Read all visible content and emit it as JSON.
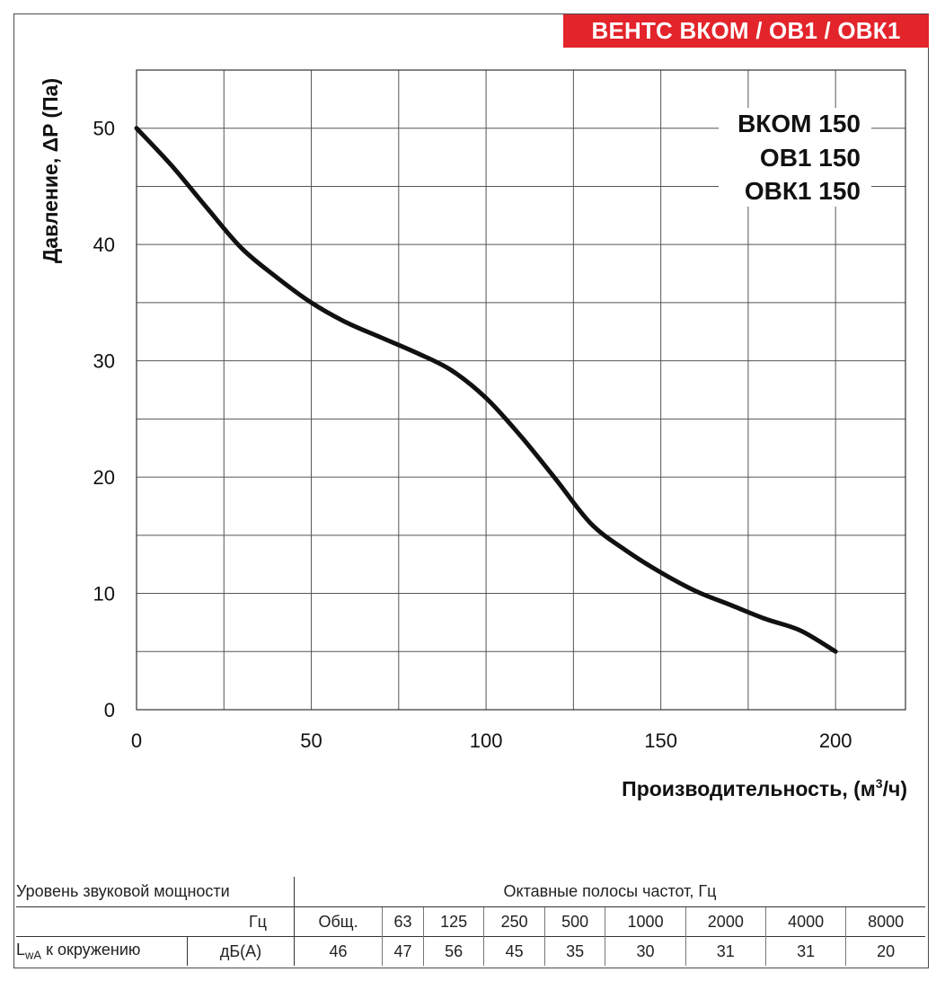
{
  "header": {
    "title": "ВЕНТС ВКОМ / ОВ1 / ОВК1"
  },
  "chart_data": {
    "type": "line",
    "title": "",
    "model_labels": [
      "ВКОМ 150",
      "ОВ1 150",
      "ОВК1 150"
    ],
    "xlabel": "Производительность, (м³/ч)",
    "xlabel_main": "Производительность, (м",
    "xlabel_sup": "3",
    "xlabel_tail": "/ч)",
    "ylabel": "Давление, ΔP (Па)",
    "xlim": [
      0,
      220
    ],
    "ylim": [
      0,
      55
    ],
    "x_ticks": [
      0,
      50,
      100,
      150,
      200
    ],
    "y_ticks": [
      0,
      10,
      20,
      30,
      40,
      50
    ],
    "grid": true,
    "series": [
      {
        "name": "ВКОМ 150 / ОВ1 150 / ОВК1 150",
        "x": [
          0,
          10,
          20,
          30,
          40,
          50,
          60,
          70,
          80,
          90,
          100,
          110,
          120,
          130,
          140,
          150,
          160,
          170,
          180,
          190,
          200
        ],
        "y": [
          50,
          46.8,
          43.2,
          39.7,
          37.2,
          35.0,
          33.3,
          32.0,
          30.7,
          29.2,
          26.8,
          23.5,
          19.8,
          16.0,
          13.7,
          11.8,
          10.2,
          9.0,
          7.8,
          6.8,
          5.0
        ]
      }
    ],
    "color": "#111111"
  },
  "sound": {
    "title": "Уровень звуковой мощности",
    "bands_title": "Октавные полосы частот, Гц",
    "unit_hz": "Гц",
    "bands": [
      "Общ.",
      "63",
      "125",
      "250",
      "500",
      "1000",
      "2000",
      "4000",
      "8000"
    ],
    "row_label_main": "L",
    "row_label_sub": "wA",
    "row_label_rest": " к окружению",
    "row_unit": "дБ(А)",
    "values": [
      "46",
      "47",
      "56",
      "45",
      "35",
      "30",
      "31",
      "31",
      "20"
    ]
  }
}
